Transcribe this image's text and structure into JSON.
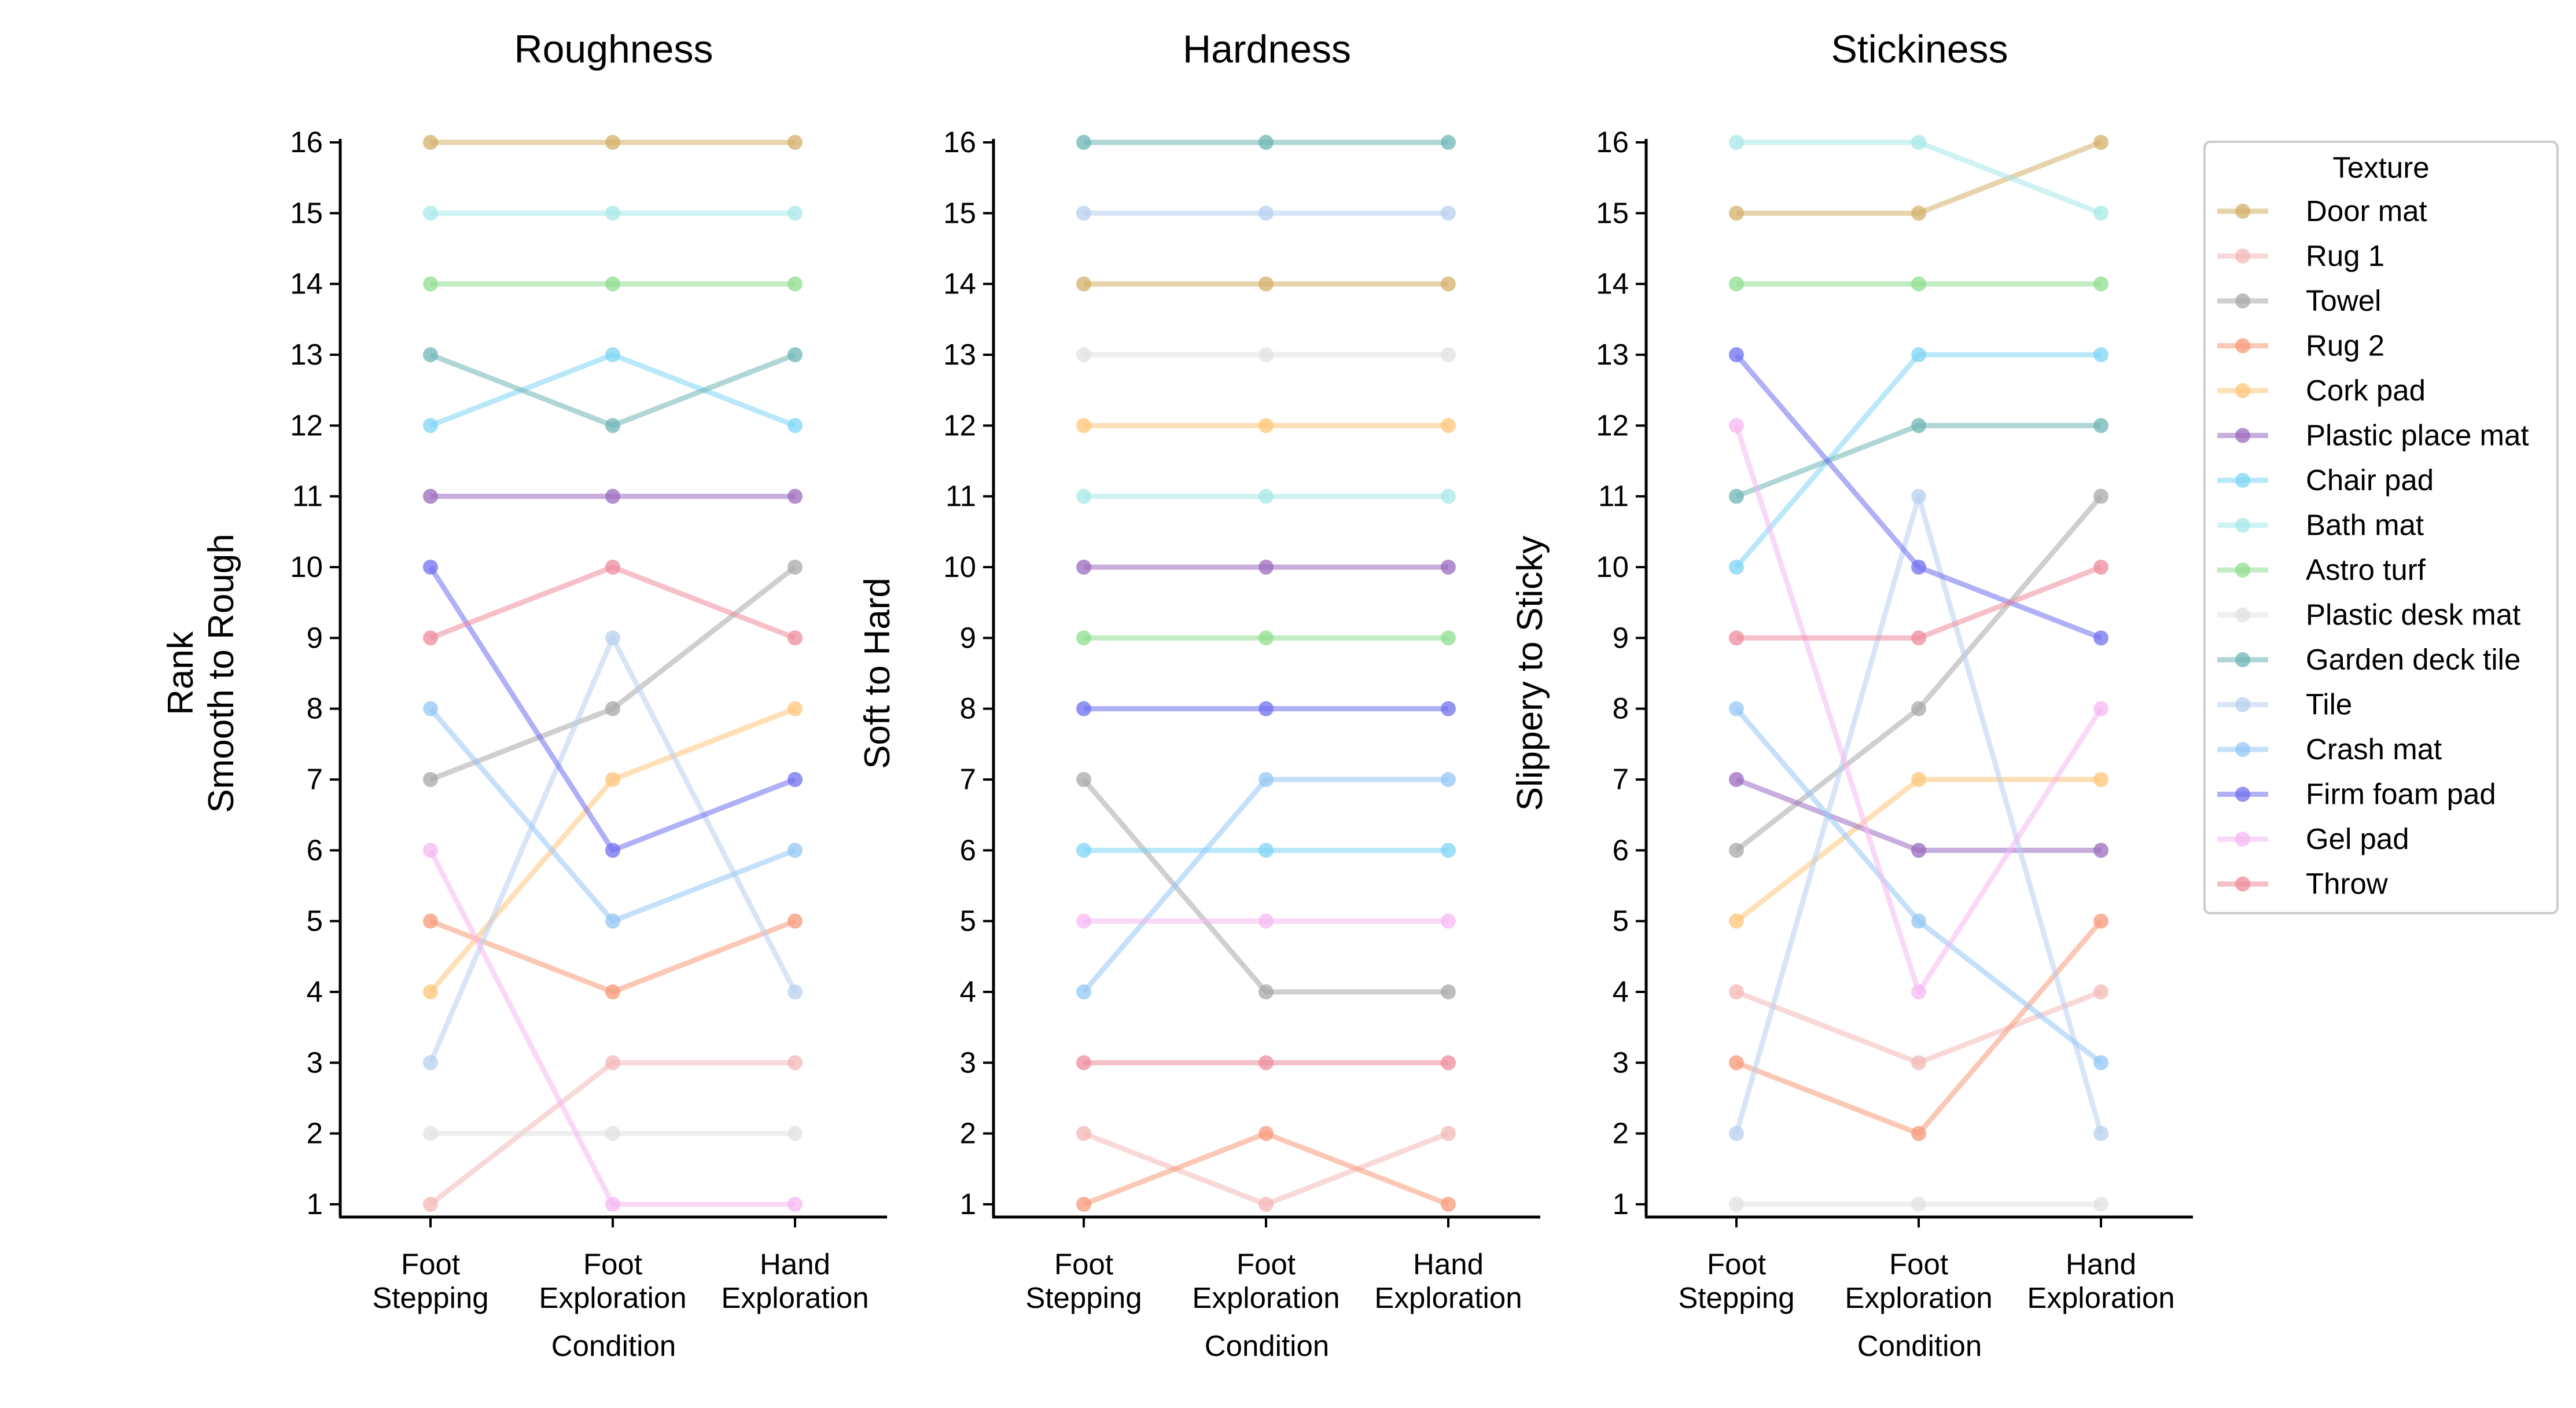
{
  "chart_data": {
    "type": "line",
    "categories": [
      "Foot\nStepping",
      "Foot\nExploration",
      "Hand\nExploration"
    ],
    "xlabel": "Condition",
    "ylim": [
      1,
      16
    ],
    "yticks": [
      1,
      2,
      3,
      4,
      5,
      6,
      7,
      8,
      9,
      10,
      11,
      12,
      13,
      14,
      15,
      16
    ],
    "grid": false,
    "legend": {
      "title": "Texture",
      "placement": "right"
    },
    "textures": [
      {
        "name": "Door mat",
        "color": "#d4b06a"
      },
      {
        "name": "Rug 1",
        "color": "#f4b8b8"
      },
      {
        "name": "Towel",
        "color": "#a8a8a8"
      },
      {
        "name": "Rug 2",
        "color": "#f79a7a"
      },
      {
        "name": "Cork pad",
        "color": "#ffc57a"
      },
      {
        "name": "Plastic place mat",
        "color": "#9b6bbf"
      },
      {
        "name": "Chair pad",
        "color": "#7ed6f5"
      },
      {
        "name": "Bath mat",
        "color": "#a8e8e8"
      },
      {
        "name": "Astro turf",
        "color": "#8fdd8f"
      },
      {
        "name": "Plastic desk mat",
        "color": "#e2e2e2"
      },
      {
        "name": "Garden deck tile",
        "color": "#6fb5b5"
      },
      {
        "name": "Tile",
        "color": "#b8cff0"
      },
      {
        "name": "Crash mat",
        "color": "#94c7f5"
      },
      {
        "name": "Firm foam pad",
        "color": "#7070f0"
      },
      {
        "name": "Gel pad",
        "color": "#f5b8f2"
      },
      {
        "name": "Throw",
        "color": "#ee8c9c"
      }
    ],
    "panels": [
      {
        "title": "Roughness",
        "ylabel": [
          "Rank",
          "Smooth to Rough"
        ],
        "series": [
          {
            "name": "Door mat",
            "values": [
              16,
              16,
              16
            ]
          },
          {
            "name": "Rug 1",
            "values": [
              1,
              3,
              3
            ]
          },
          {
            "name": "Towel",
            "values": [
              7,
              8,
              10
            ]
          },
          {
            "name": "Rug 2",
            "values": [
              5,
              4,
              5
            ]
          },
          {
            "name": "Cork pad",
            "values": [
              4,
              7,
              8
            ]
          },
          {
            "name": "Plastic place mat",
            "values": [
              11,
              11,
              11
            ]
          },
          {
            "name": "Chair pad",
            "values": [
              12,
              13,
              12
            ]
          },
          {
            "name": "Bath mat",
            "values": [
              15,
              15,
              15
            ]
          },
          {
            "name": "Astro turf",
            "values": [
              14,
              14,
              14
            ]
          },
          {
            "name": "Plastic desk mat",
            "values": [
              2,
              2,
              2
            ]
          },
          {
            "name": "Garden deck tile",
            "values": [
              13,
              12,
              13
            ]
          },
          {
            "name": "Tile",
            "values": [
              3,
              9,
              4
            ]
          },
          {
            "name": "Crash mat",
            "values": [
              8,
              5,
              6
            ]
          },
          {
            "name": "Firm foam pad",
            "values": [
              10,
              6,
              7
            ]
          },
          {
            "name": "Gel pad",
            "values": [
              6,
              1,
              1
            ]
          },
          {
            "name": "Throw",
            "values": [
              9,
              10,
              9
            ]
          }
        ]
      },
      {
        "title": "Hardness",
        "ylabel": [
          "Soft to Hard"
        ],
        "series": [
          {
            "name": "Door mat",
            "values": [
              14,
              14,
              14
            ]
          },
          {
            "name": "Rug 1",
            "values": [
              2,
              1,
              2
            ]
          },
          {
            "name": "Towel",
            "values": [
              7,
              4,
              4
            ]
          },
          {
            "name": "Rug 2",
            "values": [
              1,
              2,
              1
            ]
          },
          {
            "name": "Cork pad",
            "values": [
              12,
              12,
              12
            ]
          },
          {
            "name": "Plastic place mat",
            "values": [
              10,
              10,
              10
            ]
          },
          {
            "name": "Chair pad",
            "values": [
              6,
              6,
              6
            ]
          },
          {
            "name": "Bath mat",
            "values": [
              11,
              11,
              11
            ]
          },
          {
            "name": "Astro turf",
            "values": [
              9,
              9,
              9
            ]
          },
          {
            "name": "Plastic desk mat",
            "values": [
              13,
              13,
              13
            ]
          },
          {
            "name": "Garden deck tile",
            "values": [
              16,
              16,
              16
            ]
          },
          {
            "name": "Tile",
            "values": [
              15,
              15,
              15
            ]
          },
          {
            "name": "Crash mat",
            "values": [
              4,
              7,
              7
            ]
          },
          {
            "name": "Firm foam pad",
            "values": [
              8,
              8,
              8
            ]
          },
          {
            "name": "Gel pad",
            "values": [
              5,
              5,
              5
            ]
          },
          {
            "name": "Throw",
            "values": [
              3,
              3,
              3
            ]
          }
        ]
      },
      {
        "title": "Stickiness",
        "ylabel": [
          "Slippery to Sticky"
        ],
        "series": [
          {
            "name": "Door mat",
            "values": [
              15,
              15,
              16
            ]
          },
          {
            "name": "Rug 1",
            "values": [
              4,
              3,
              4
            ]
          },
          {
            "name": "Towel",
            "values": [
              6,
              8,
              11
            ]
          },
          {
            "name": "Rug 2",
            "values": [
              3,
              2,
              5
            ]
          },
          {
            "name": "Cork pad",
            "values": [
              5,
              7,
              7
            ]
          },
          {
            "name": "Plastic place mat",
            "values": [
              7,
              6,
              6
            ]
          },
          {
            "name": "Chair pad",
            "values": [
              10,
              13,
              13
            ]
          },
          {
            "name": "Bath mat",
            "values": [
              16,
              16,
              15
            ]
          },
          {
            "name": "Astro turf",
            "values": [
              14,
              14,
              14
            ]
          },
          {
            "name": "Plastic desk mat",
            "values": [
              1,
              1,
              1
            ]
          },
          {
            "name": "Garden deck tile",
            "values": [
              11,
              12,
              12
            ]
          },
          {
            "name": "Tile",
            "values": [
              2,
              11,
              2
            ]
          },
          {
            "name": "Crash mat",
            "values": [
              8,
              5,
              3
            ]
          },
          {
            "name": "Firm foam pad",
            "values": [
              13,
              10,
              9
            ]
          },
          {
            "name": "Gel pad",
            "values": [
              12,
              4,
              8
            ]
          },
          {
            "name": "Throw",
            "values": [
              9,
              9,
              10
            ]
          }
        ]
      }
    ]
  }
}
